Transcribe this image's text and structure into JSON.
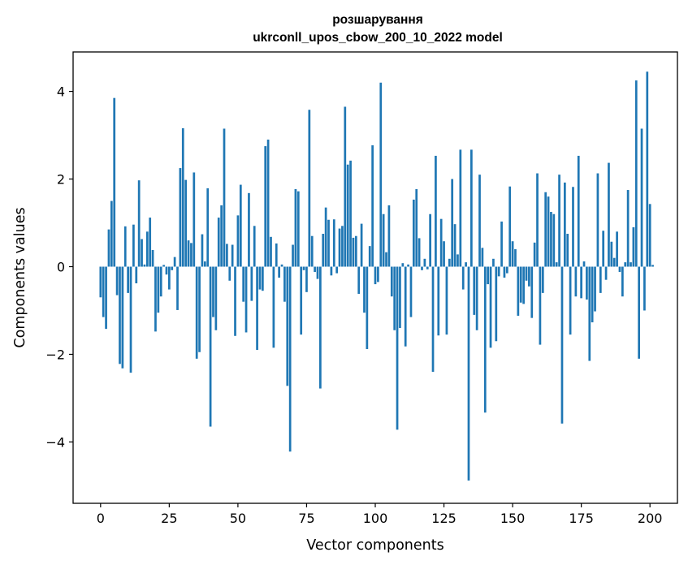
{
  "chart_data": {
    "type": "bar",
    "title_line1": "розшарування",
    "title_line2": "ukrconll_upos_cbow_200_10_2022 model",
    "xlabel": "Vector components",
    "ylabel": "Components values",
    "xlim": [
      -10,
      210
    ],
    "ylim": [
      -5.4,
      4.9
    ],
    "xticks": [
      0,
      25,
      50,
      75,
      100,
      125,
      150,
      175,
      200
    ],
    "xtick_labels": [
      "0",
      "25",
      "50",
      "75",
      "100",
      "125",
      "150",
      "175",
      "200"
    ],
    "yticks": [
      -4,
      -2,
      0,
      2,
      4
    ],
    "ytick_labels": [
      "−4",
      "−2",
      "0",
      "2",
      "4"
    ],
    "bar_color": "#1f77b4",
    "series": [
      {
        "name": "components",
        "x_start": 0,
        "values": [
          -0.7,
          -1.15,
          -1.42,
          0.85,
          1.5,
          3.85,
          -0.65,
          -2.22,
          -2.32,
          0.92,
          -0.6,
          -2.42,
          0.96,
          -0.38,
          1.97,
          0.63,
          0.05,
          0.8,
          1.12,
          0.38,
          -1.48,
          -1.05,
          -0.68,
          0.04,
          -0.18,
          -0.52,
          -0.08,
          0.22,
          -0.99,
          2.25,
          3.16,
          1.98,
          0.6,
          0.54,
          2.15,
          -2.1,
          -1.95,
          0.74,
          0.12,
          1.79,
          -3.65,
          -1.15,
          -1.45,
          1.12,
          1.4,
          3.15,
          0.52,
          -0.32,
          0.5,
          -1.58,
          1.17,
          1.87,
          -0.8,
          -1.5,
          1.68,
          -0.78,
          0.93,
          -1.9,
          -0.52,
          -0.55,
          2.75,
          2.9,
          0.68,
          -1.85,
          0.53,
          -0.25,
          0.05,
          -0.8,
          -2.72,
          -4.22,
          0.5,
          1.77,
          1.72,
          -1.55,
          -0.08,
          -0.58,
          3.58,
          0.7,
          -0.12,
          -0.28,
          -2.78,
          0.75,
          1.35,
          1.07,
          -0.2,
          1.08,
          -0.15,
          0.87,
          0.93,
          3.65,
          2.33,
          2.42,
          0.66,
          0.7,
          -0.62,
          0.98,
          -1.05,
          -1.88,
          0.47,
          2.77,
          -0.4,
          -0.35,
          4.2,
          1.2,
          0.33,
          1.4,
          -0.68,
          -1.45,
          -3.72,
          -1.4,
          0.08,
          -1.82,
          0.05,
          -1.15,
          1.53,
          1.77,
          0.65,
          -0.08,
          0.18,
          -0.06,
          1.2,
          -2.4,
          2.53,
          -1.57,
          1.09,
          0.58,
          -1.55,
          0.18,
          2.0,
          0.97,
          0.28,
          2.67,
          -0.52,
          0.1,
          -4.88,
          2.67,
          -1.1,
          -1.45,
          2.1,
          0.43,
          -3.33,
          -0.4,
          -1.85,
          0.18,
          -1.7,
          -0.22,
          1.03,
          -0.25,
          -0.15,
          1.83,
          0.58,
          0.4,
          -1.12,
          -0.82,
          -0.85,
          -0.32,
          -0.45,
          -1.17,
          0.55,
          2.13,
          -1.78,
          -0.6,
          1.7,
          1.6,
          1.25,
          1.2,
          0.1,
          2.1,
          -3.58,
          1.92,
          0.75,
          -1.55,
          1.82,
          -0.68,
          2.53,
          -0.72,
          0.12,
          -0.75,
          -2.15,
          -1.27,
          -1.02,
          2.13,
          -0.6,
          0.82,
          -0.3,
          2.37,
          0.57,
          0.2,
          0.8,
          -0.12,
          -0.68,
          0.1,
          1.75,
          0.1,
          0.9,
          4.25,
          -2.1,
          3.15,
          -1.0,
          4.45,
          1.43,
          0.04
        ]
      }
    ]
  }
}
